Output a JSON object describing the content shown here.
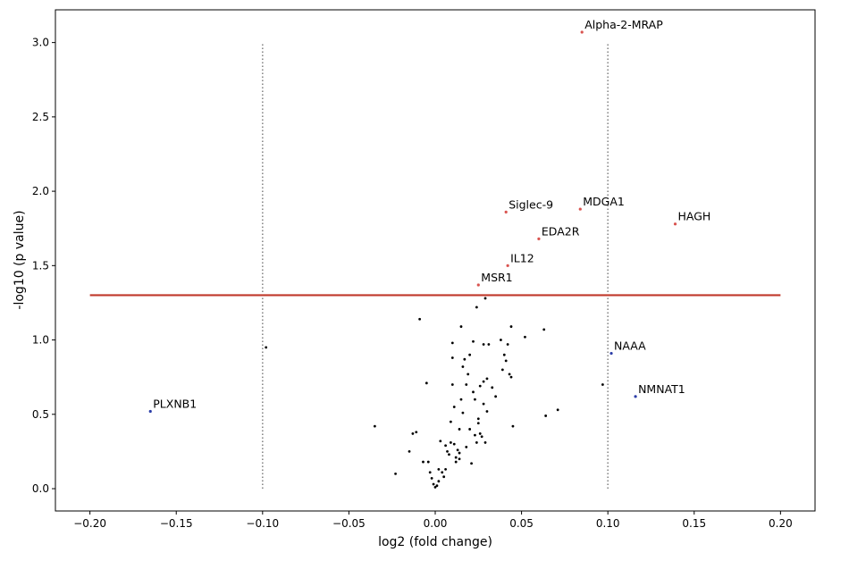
{
  "chart_data": {
    "type": "scatter",
    "xlabel": "log2 (fold change)",
    "ylabel": "-log10 (p value)",
    "xlim": [
      -0.22,
      0.22
    ],
    "ylim": [
      -0.15,
      3.22
    ],
    "x_ticks": [
      -0.2,
      -0.15,
      -0.1,
      -0.05,
      0.0,
      0.05,
      0.1,
      0.15,
      0.2
    ],
    "x_tick_labels": [
      "−0.20",
      "−0.15",
      "−0.10",
      "−0.05",
      "0.00",
      "0.05",
      "0.10",
      "0.15",
      "0.20"
    ],
    "y_ticks": [
      0.0,
      0.5,
      1.0,
      1.5,
      2.0,
      2.5,
      3.0
    ],
    "y_tick_labels": [
      "0.0",
      "0.5",
      "1.0",
      "1.5",
      "2.0",
      "2.5",
      "3.0"
    ],
    "grid": false,
    "threshold_line": {
      "y": 1.301,
      "x_from": -0.2,
      "x_to": 0.2,
      "color": "#c0392b"
    },
    "fold_change_lines": [
      {
        "x": -0.1,
        "y_from": 0.0,
        "y_to": 3.0,
        "color": "#888888"
      },
      {
        "x": 0.1,
        "y_from": 0.0,
        "y_to": 3.0,
        "color": "#888888"
      }
    ],
    "colors": {
      "significant": "#d9534f",
      "fold_change_only": "#2c3ea8",
      "other": "#000000"
    },
    "labeled_points": [
      {
        "label": "Alpha-2-MRAP",
        "x": 0.085,
        "y": 3.07,
        "group": "significant"
      },
      {
        "label": "Siglec-9",
        "x": 0.041,
        "y": 1.86,
        "group": "significant"
      },
      {
        "label": "MDGA1",
        "x": 0.084,
        "y": 1.88,
        "group": "significant"
      },
      {
        "label": "HAGH",
        "x": 0.139,
        "y": 1.78,
        "group": "significant"
      },
      {
        "label": "EDA2R",
        "x": 0.06,
        "y": 1.68,
        "group": "significant"
      },
      {
        "label": "IL12",
        "x": 0.042,
        "y": 1.5,
        "group": "significant"
      },
      {
        "label": "MSR1",
        "x": 0.025,
        "y": 1.37,
        "group": "significant"
      },
      {
        "label": "NAAA",
        "x": 0.102,
        "y": 0.91,
        "group": "fold_change_only"
      },
      {
        "label": "NMNAT1",
        "x": 0.116,
        "y": 0.62,
        "group": "fold_change_only"
      },
      {
        "label": "PLXNB1",
        "x": -0.165,
        "y": 0.52,
        "group": "fold_change_only"
      }
    ],
    "other_points": [
      [
        -0.098,
        0.95
      ],
      [
        -0.035,
        0.42
      ],
      [
        -0.023,
        0.1
      ],
      [
        -0.015,
        0.25
      ],
      [
        -0.013,
        0.37
      ],
      [
        -0.011,
        0.38
      ],
      [
        -0.009,
        1.14
      ],
      [
        -0.007,
        0.18
      ],
      [
        -0.005,
        0.71
      ],
      [
        -0.004,
        0.18
      ],
      [
        -0.003,
        0.11
      ],
      [
        -0.002,
        0.07
      ],
      [
        -0.001,
        0.03
      ],
      [
        0.0,
        0.01
      ],
      [
        0.001,
        0.02
      ],
      [
        0.002,
        0.05
      ],
      [
        0.002,
        0.13
      ],
      [
        0.003,
        0.32
      ],
      [
        0.004,
        0.11
      ],
      [
        0.005,
        0.08
      ],
      [
        0.006,
        0.13
      ],
      [
        0.006,
        0.29
      ],
      [
        0.007,
        0.25
      ],
      [
        0.008,
        0.23
      ],
      [
        0.009,
        0.45
      ],
      [
        0.009,
        0.31
      ],
      [
        0.01,
        0.98
      ],
      [
        0.01,
        0.7
      ],
      [
        0.01,
        0.88
      ],
      [
        0.011,
        0.55
      ],
      [
        0.011,
        0.3
      ],
      [
        0.012,
        0.18
      ],
      [
        0.012,
        0.21
      ],
      [
        0.013,
        0.26
      ],
      [
        0.014,
        0.24
      ],
      [
        0.014,
        0.2
      ],
      [
        0.014,
        0.4
      ],
      [
        0.015,
        0.6
      ],
      [
        0.015,
        1.09
      ],
      [
        0.016,
        0.82
      ],
      [
        0.016,
        0.51
      ],
      [
        0.017,
        0.87
      ],
      [
        0.018,
        0.7
      ],
      [
        0.018,
        0.28
      ],
      [
        0.019,
        0.77
      ],
      [
        0.02,
        0.9
      ],
      [
        0.02,
        0.4
      ],
      [
        0.021,
        0.17
      ],
      [
        0.022,
        0.65
      ],
      [
        0.022,
        0.99
      ],
      [
        0.023,
        0.6
      ],
      [
        0.023,
        0.36
      ],
      [
        0.024,
        0.31
      ],
      [
        0.024,
        1.22
      ],
      [
        0.025,
        0.44
      ],
      [
        0.025,
        0.47
      ],
      [
        0.026,
        0.69
      ],
      [
        0.026,
        0.37
      ],
      [
        0.027,
        0.35
      ],
      [
        0.028,
        0.72
      ],
      [
        0.028,
        0.97
      ],
      [
        0.028,
        0.57
      ],
      [
        0.029,
        0.31
      ],
      [
        0.029,
        1.28
      ],
      [
        0.03,
        0.74
      ],
      [
        0.03,
        0.52
      ],
      [
        0.031,
        0.97
      ],
      [
        0.033,
        0.68
      ],
      [
        0.035,
        0.62
      ],
      [
        0.038,
        1.0
      ],
      [
        0.039,
        0.8
      ],
      [
        0.04,
        0.9
      ],
      [
        0.041,
        0.86
      ],
      [
        0.042,
        0.97
      ],
      [
        0.043,
        0.77
      ],
      [
        0.044,
        1.09
      ],
      [
        0.044,
        0.75
      ],
      [
        0.045,
        0.42
      ],
      [
        0.052,
        1.02
      ],
      [
        0.063,
        1.07
      ],
      [
        0.064,
        0.49
      ],
      [
        0.071,
        0.53
      ],
      [
        0.097,
        0.7
      ]
    ]
  }
}
